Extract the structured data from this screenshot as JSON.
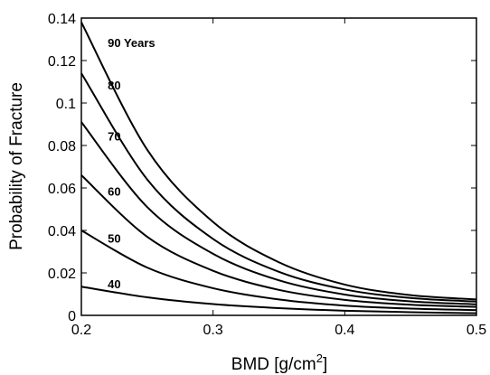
{
  "chart_data": {
    "type": "line",
    "xlabel": "BMD [g/cm",
    "xlabel_superscript": "2",
    "xlabel_suffix": "]",
    "ylabel": "Probability of Fracture",
    "xlim": [
      0.2,
      0.5
    ],
    "ylim": [
      0,
      0.14
    ],
    "x_ticks": [
      0.2,
      0.3,
      0.4,
      0.5
    ],
    "x_tick_labels": [
      "0.2",
      "0.3",
      "0.4",
      "0.5"
    ],
    "y_ticks": [
      0,
      0.02,
      0.04,
      0.06,
      0.08,
      0.1,
      0.12,
      0.14
    ],
    "y_tick_labels": [
      "0",
      "0.02",
      "0.04",
      "0.06",
      "0.08",
      "0.1",
      "0.12",
      "0.14"
    ],
    "grid": false,
    "legend": "none",
    "line_color": "#000000",
    "x": [
      0.2,
      0.25,
      0.3,
      0.35,
      0.4,
      0.45,
      0.5
    ],
    "series": [
      {
        "name": "90 Years",
        "label_at": [
          0.22,
          0.128
        ],
        "values": [
          0.138,
          0.078,
          0.044,
          0.025,
          0.0145,
          0.0095,
          0.0075
        ]
      },
      {
        "name": "80",
        "label_at": [
          0.22,
          0.108
        ],
        "values": [
          0.114,
          0.064,
          0.036,
          0.0205,
          0.0122,
          0.0082,
          0.0065
        ]
      },
      {
        "name": "70",
        "label_at": [
          0.22,
          0.084
        ],
        "values": [
          0.091,
          0.051,
          0.029,
          0.0165,
          0.0098,
          0.0066,
          0.0052
        ]
      },
      {
        "name": "60",
        "label_at": [
          0.22,
          0.058
        ],
        "values": [
          0.066,
          0.037,
          0.021,
          0.012,
          0.0073,
          0.005,
          0.004
        ]
      },
      {
        "name": "50",
        "label_at": [
          0.22,
          0.036
        ],
        "values": [
          0.04,
          0.0225,
          0.0128,
          0.0075,
          0.0046,
          0.0032,
          0.0025
        ]
      },
      {
        "name": "40",
        "label_at": [
          0.22,
          0.0145
        ],
        "values": [
          0.0135,
          0.0085,
          0.0053,
          0.0034,
          0.0022,
          0.0015,
          0.001
        ]
      }
    ]
  }
}
